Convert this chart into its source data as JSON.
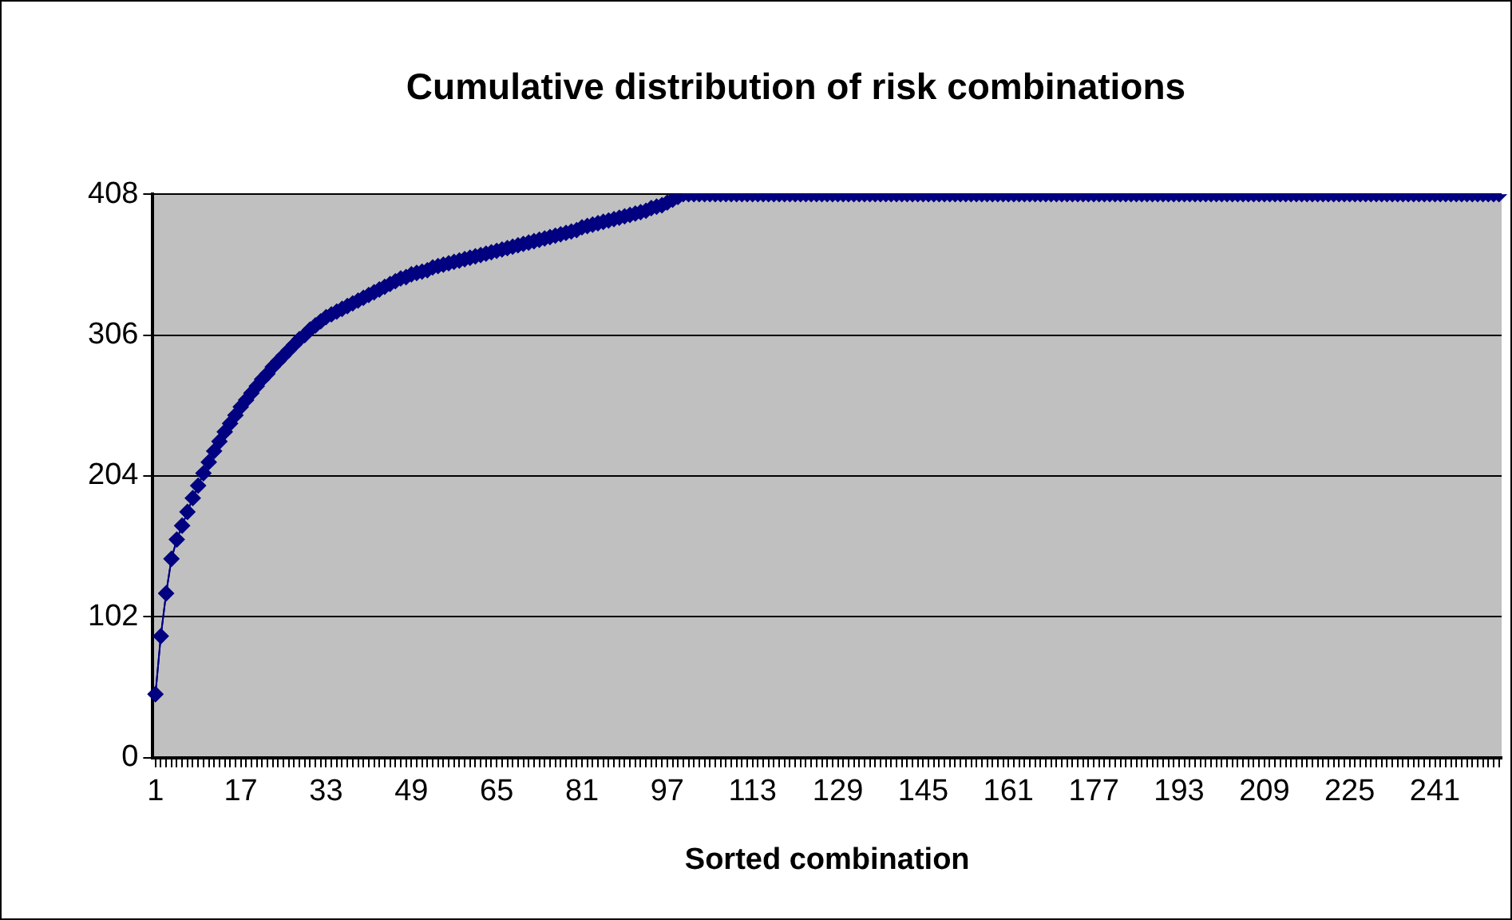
{
  "chart_data": {
    "type": "line",
    "title": "Cumulative distribution of risk combinations",
    "xlabel": "Sorted combination",
    "categories": [
      "1",
      null,
      null,
      null,
      null,
      null,
      null,
      null,
      null,
      null,
      null,
      null,
      null,
      null,
      null,
      null,
      "17",
      null,
      null,
      null,
      null,
      null,
      null,
      null,
      null,
      null,
      null,
      null,
      null,
      null,
      null,
      null,
      "33",
      null,
      null,
      null,
      null,
      null,
      null,
      null,
      null,
      null,
      null,
      null,
      null,
      null,
      null,
      null,
      "49",
      null,
      null,
      null,
      null,
      null,
      null,
      null,
      null,
      null,
      null,
      null,
      null,
      null,
      null,
      null,
      "65",
      null,
      null,
      null,
      null,
      null,
      null,
      null,
      null,
      null,
      null,
      null,
      null,
      null,
      null,
      null,
      "81",
      null,
      null,
      null,
      null,
      null,
      null,
      null,
      null,
      null,
      null,
      null,
      null,
      null,
      null,
      null,
      "97",
      null,
      null,
      null,
      null,
      null,
      null,
      null,
      null,
      null,
      null,
      null,
      null,
      null,
      null,
      null,
      "113",
      null,
      null,
      null,
      null,
      null,
      null,
      null,
      null,
      null,
      null,
      null,
      null,
      null,
      null,
      null,
      "129",
      null,
      null,
      null,
      null,
      null,
      null,
      null,
      null,
      null,
      null,
      null,
      null,
      null,
      null,
      null,
      "145",
      null,
      null,
      null,
      null,
      null,
      null,
      null,
      null,
      null,
      null,
      null,
      null,
      null,
      null,
      null,
      "161",
      null,
      null,
      null,
      null,
      null,
      null,
      null,
      null,
      null,
      null,
      null,
      null,
      null,
      null,
      null,
      "177",
      null,
      null,
      null,
      null,
      null,
      null,
      null,
      null,
      null,
      null,
      null,
      null,
      null,
      null,
      null,
      "193",
      null,
      null,
      null,
      null,
      null,
      null,
      null,
      null,
      null,
      null,
      null,
      null,
      null,
      null,
      null,
      "209",
      null,
      null,
      null,
      null,
      null,
      null,
      null,
      null,
      null,
      null,
      null,
      null,
      null,
      null,
      null,
      "225",
      null,
      null,
      null,
      null,
      null,
      null,
      null,
      null,
      null,
      null,
      null,
      null,
      null,
      null,
      null,
      "241",
      null,
      null,
      null,
      null,
      null,
      null,
      null,
      null,
      null,
      null,
      null,
      null
    ],
    "series": [
      {
        "color": "#000080",
        "values": [
          46,
          88,
          119,
          144,
          158,
          168,
          178,
          188,
          197,
          206,
          214,
          222,
          229,
          236,
          242,
          248,
          254,
          259,
          264,
          269,
          274,
          278,
          283,
          287,
          291,
          295,
          299,
          303,
          306,
          310,
          313,
          316,
          319,
          321,
          323,
          325,
          327,
          329,
          331,
          333,
          335,
          337,
          339,
          341,
          343,
          345,
          347,
          348,
          350,
          351,
          352,
          353,
          355,
          356,
          357,
          358,
          359,
          360,
          361,
          362,
          363,
          364,
          365,
          366,
          367,
          368,
          369,
          370,
          371,
          372,
          373,
          374,
          375,
          376,
          377,
          378,
          379,
          380,
          381,
          382,
          384,
          385,
          386,
          387,
          388,
          389,
          390,
          391,
          392,
          393,
          394,
          395,
          396,
          398,
          399,
          400,
          402,
          404,
          406,
          408,
          408,
          408,
          408,
          408,
          408,
          408,
          408,
          408,
          408,
          408,
          408,
          408,
          408,
          408,
          408,
          408,
          408,
          408,
          408,
          408,
          408,
          408,
          408,
          408,
          408,
          408,
          408,
          408,
          408,
          408,
          408,
          408,
          408,
          408,
          408,
          408,
          408,
          408,
          408,
          408,
          408,
          408,
          408,
          408,
          408,
          408,
          408,
          408,
          408,
          408,
          408,
          408,
          408,
          408,
          408,
          408,
          408,
          408,
          408,
          408,
          408,
          408,
          408,
          408,
          408,
          408,
          408,
          408,
          408,
          408,
          408,
          408,
          408,
          408,
          408,
          408,
          408,
          408,
          408,
          408,
          408,
          408,
          408,
          408,
          408,
          408,
          408,
          408,
          408,
          408,
          408,
          408,
          408,
          408,
          408,
          408,
          408,
          408,
          408,
          408,
          408,
          408,
          408,
          408,
          408,
          408,
          408,
          408,
          408,
          408,
          408,
          408,
          408,
          408,
          408,
          408,
          408,
          408,
          408,
          408,
          408,
          408,
          408,
          408,
          408,
          408,
          408,
          408,
          408,
          408,
          408,
          408,
          408,
          408,
          408,
          408,
          408,
          408,
          408,
          408,
          408,
          408,
          408,
          408,
          408,
          408,
          408,
          408,
          408,
          408,
          408,
          408,
          408
        ]
      }
    ],
    "ylim": [
      0,
      408
    ],
    "yticks": [
      0,
      102,
      204,
      306,
      408
    ],
    "grid": "y",
    "legend": false,
    "marker": "diamond",
    "line_style": "solid"
  }
}
